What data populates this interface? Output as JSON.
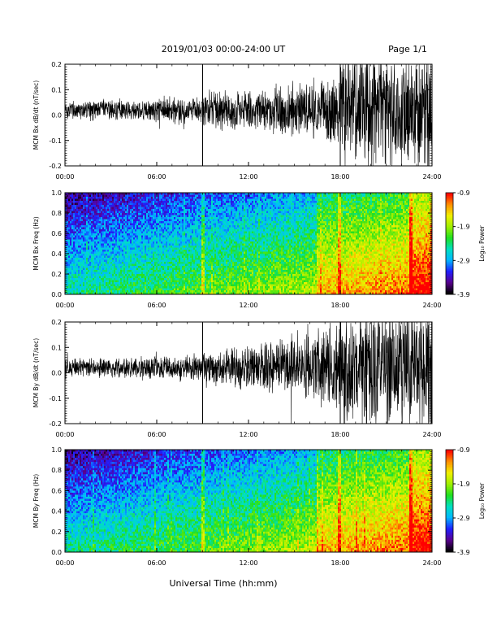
{
  "header": {
    "title": "2019/01/03  00:00-24:00 UT",
    "page": "Page 1/1"
  },
  "xlabel_global": "Universal Time (hh:mm)",
  "colorbar": {
    "label": "Log₁₀ Power",
    "ticks": [
      "-0.9",
      "-1.9",
      "-2.9",
      "-3.9"
    ],
    "range": [
      -3.9,
      -0.9
    ],
    "colors": [
      "#000000",
      "#5a0090",
      "#1f1fff",
      "#00b8ff",
      "#00e0c0",
      "#20e020",
      "#a0f000",
      "#f0f000",
      "#ff9000",
      "#ff0000"
    ]
  },
  "chart_data": [
    {
      "type": "line",
      "ylabel": "MCM Bx dB/dt (nT/sec)",
      "xlim": [
        0,
        24
      ],
      "ylim": [
        -0.2,
        0.2
      ],
      "yticks": [
        "0.2",
        "0.1",
        "0.0",
        "-0.1",
        "-0.2"
      ],
      "xticks": [
        "00:00",
        "06:00",
        "12:00",
        "18:00",
        "24:00"
      ],
      "envelope_hours": [
        0,
        3,
        6,
        8.9,
        9.1,
        12,
        15,
        17.9,
        18.1,
        21,
        24
      ],
      "envelope_amplitude": [
        0.03,
        0.035,
        0.04,
        0.045,
        0.07,
        0.06,
        0.09,
        0.12,
        0.2,
        0.2,
        0.2
      ],
      "spikes": [
        {
          "x": 9.0,
          "y": [
            0.2,
            -0.2
          ]
        },
        {
          "x": 18.0,
          "y": [
            0.2,
            -0.2
          ]
        }
      ]
    },
    {
      "type": "heatmap",
      "ylabel": "MCM Bx Freq (Hz)",
      "xlim": [
        0,
        24
      ],
      "ylim": [
        0,
        1.0
      ],
      "yticks": [
        "1.0",
        "0.8",
        "0.6",
        "0.4",
        "0.2",
        "0.0"
      ],
      "xticks": [
        "00:00",
        "06:00",
        "12:00",
        "18:00",
        "24:00"
      ]
    },
    {
      "type": "line",
      "ylabel": "MCM By dB/dt (nT/sec)",
      "xlim": [
        0,
        24
      ],
      "ylim": [
        -0.2,
        0.2
      ],
      "yticks": [
        "0.2",
        "0.1",
        "0.0",
        "-0.1",
        "-0.2"
      ],
      "xticks": [
        "00:00",
        "06:00",
        "12:00",
        "18:00",
        "24:00"
      ],
      "envelope_hours": [
        0,
        3,
        6,
        8.9,
        9.1,
        12,
        15,
        17.9,
        18.1,
        21,
        24
      ],
      "envelope_amplitude": [
        0.03,
        0.035,
        0.04,
        0.045,
        0.06,
        0.07,
        0.1,
        0.13,
        0.2,
        0.2,
        0.2
      ],
      "spikes": [
        {
          "x": 9.0,
          "y": [
            0.2,
            -0.2
          ]
        },
        {
          "x": 18.0,
          "y": [
            0.2,
            -0.2
          ]
        }
      ]
    },
    {
      "type": "heatmap",
      "ylabel": "MCM By Freq (Hz)",
      "xlim": [
        0,
        24
      ],
      "ylim": [
        0,
        1.0
      ],
      "yticks": [
        "1.0",
        "0.8",
        "0.6",
        "0.4",
        "0.2",
        "0.0"
      ],
      "xticks": [
        "00:00",
        "06:00",
        "12:00",
        "18:00",
        "24:00"
      ]
    }
  ]
}
